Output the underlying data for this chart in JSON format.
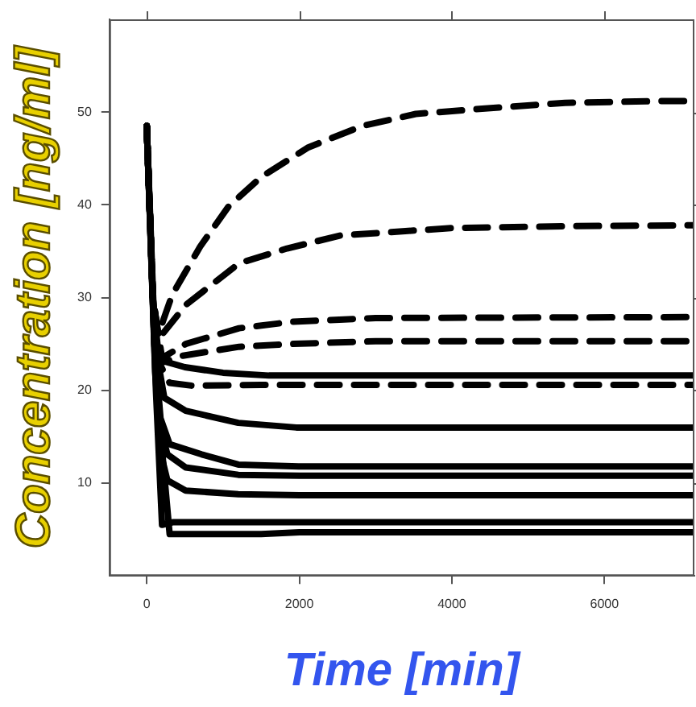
{
  "chart_data": {
    "type": "line",
    "xlabel": "Time [min]",
    "ylabel": "Concentration [ng/ml]",
    "xlim": [
      -490,
      7180
    ],
    "ylim": [
      0,
      60
    ],
    "xticks": [
      0,
      2000,
      4000,
      6000
    ],
    "yticks": [
      10,
      20,
      30,
      40,
      50
    ],
    "grid": false,
    "legend": false,
    "marker": "none",
    "series": [
      {
        "color": "#000000",
        "line_style": "dashed",
        "x": [
          0,
          80,
          150,
          333,
          700,
          1070,
          1500,
          2120,
          2825,
          3526,
          4300,
          5484,
          6825,
          7180
        ],
        "values": [
          48.5,
          30,
          26,
          30.3,
          35.5,
          39.8,
          43,
          46.2,
          48.5,
          49.8,
          50.3,
          51,
          51.2,
          51.2
        ]
      },
      {
        "color": "#000000",
        "line_style": "dashed",
        "x": [
          0,
          80,
          150,
          510,
          1210,
          1840,
          2540,
          4000,
          5500,
          7180
        ],
        "values": [
          48.5,
          30,
          25.5,
          29.2,
          33.7,
          35.3,
          36.7,
          37.5,
          37.7,
          37.8
        ]
      },
      {
        "color": "#000000",
        "line_style": "dashed",
        "x": [
          0,
          80,
          200,
          510,
          1210,
          1910,
          3000,
          7180
        ],
        "values": [
          48.5,
          30,
          23.5,
          25,
          26.7,
          27.4,
          27.8,
          27.9
        ]
      },
      {
        "color": "#000000",
        "line_style": "dashed",
        "x": [
          0,
          80,
          200,
          440,
          1210,
          1880,
          3000,
          7180
        ],
        "values": [
          48.5,
          30,
          23,
          23.7,
          24.7,
          25,
          25.3,
          25.3
        ]
      },
      {
        "color": "#000000",
        "line_style": "dashed",
        "x": [
          0,
          80,
          160,
          300,
          600,
          1500,
          7180
        ],
        "values": [
          48.5,
          30,
          23,
          20.8,
          20.5,
          20.6,
          20.6
        ]
      },
      {
        "color": "#000000",
        "line_style": "solid",
        "x": [
          0,
          80,
          160,
          500,
          1000,
          1600,
          7180
        ],
        "values": [
          48.5,
          30,
          23.3,
          22.5,
          21.9,
          21.6,
          21.6
        ]
      },
      {
        "color": "#000000",
        "line_style": "solid",
        "x": [
          0,
          80,
          150,
          230,
          510,
          1200,
          1960,
          7180
        ],
        "values": [
          48.5,
          30,
          23,
          19.2,
          17.8,
          16.5,
          16,
          16
        ]
      },
      {
        "color": "#000000",
        "line_style": "solid",
        "x": [
          0,
          100,
          180,
          300,
          720,
          1200,
          1990,
          7180
        ],
        "values": [
          48.5,
          25,
          17,
          14.2,
          13.1,
          12,
          11.8,
          11.8
        ]
      },
      {
        "color": "#000000",
        "line_style": "solid",
        "x": [
          0,
          100,
          180,
          270,
          510,
          1200,
          2000,
          7180
        ],
        "values": [
          48.5,
          25,
          16,
          13.1,
          11.7,
          10.9,
          10.8,
          10.8
        ]
      },
      {
        "color": "#000000",
        "line_style": "solid",
        "x": [
          0,
          110,
          190,
          270,
          510,
          1200,
          2000,
          7180
        ],
        "values": [
          48.5,
          22,
          13,
          10.3,
          9.2,
          8.8,
          8.7,
          8.7
        ]
      },
      {
        "color": "#000000",
        "line_style": "solid",
        "x": [
          0,
          120,
          200,
          350,
          1000,
          7180
        ],
        "values": [
          48.5,
          20,
          5.5,
          5.8,
          5.8,
          5.8
        ]
      },
      {
        "color": "#000000",
        "line_style": "solid",
        "x": [
          0,
          130,
          300,
          1500,
          2000,
          7180
        ],
        "values": [
          48.5,
          20,
          4.5,
          4.5,
          4.7,
          4.7
        ]
      }
    ]
  }
}
